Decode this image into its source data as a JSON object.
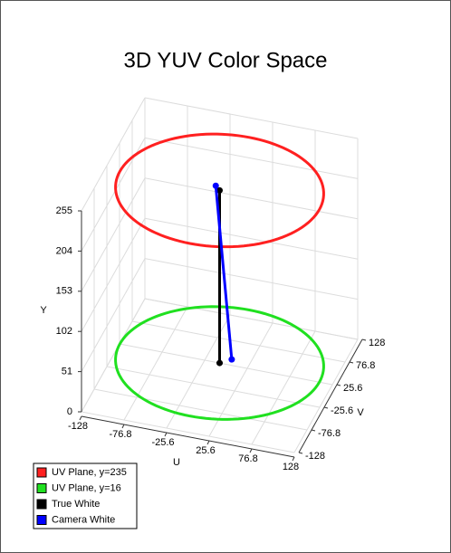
{
  "chart_data": {
    "type": "line3d",
    "title": "3D YUV Color Space",
    "xlabel": "U",
    "ylabel": "Y",
    "zlabel": "V",
    "xlim": [
      -128,
      128
    ],
    "xticks": [
      -128,
      -76.8,
      -25.6,
      25.6,
      76.8,
      128
    ],
    "zlim": [
      -128,
      128
    ],
    "zticks": [
      -128,
      -76.8,
      -25.6,
      25.6,
      76.8,
      128
    ],
    "ylim": [
      0,
      255
    ],
    "yticks": [
      0,
      51,
      102,
      153,
      204,
      255
    ],
    "grid": true,
    "legend": "bottom-left",
    "series": [
      {
        "name": "UV Plane, y=235",
        "color": "#ff2020",
        "kind": "circle",
        "y": 235,
        "radius": 120
      },
      {
        "name": "UV Plane, y=16",
        "color": "#20e020",
        "kind": "circle",
        "y": 16,
        "radius": 120
      },
      {
        "name": "True White",
        "color": "#000000",
        "kind": "line",
        "u": [
          0,
          0
        ],
        "v": [
          0,
          0
        ],
        "y": [
          16,
          235
        ]
      },
      {
        "name": "Camera White",
        "color": "#0000ff",
        "kind": "line",
        "u": [
          11,
          -7
        ],
        "v": [
          12,
          8
        ],
        "y": [
          16,
          235
        ]
      }
    ]
  }
}
